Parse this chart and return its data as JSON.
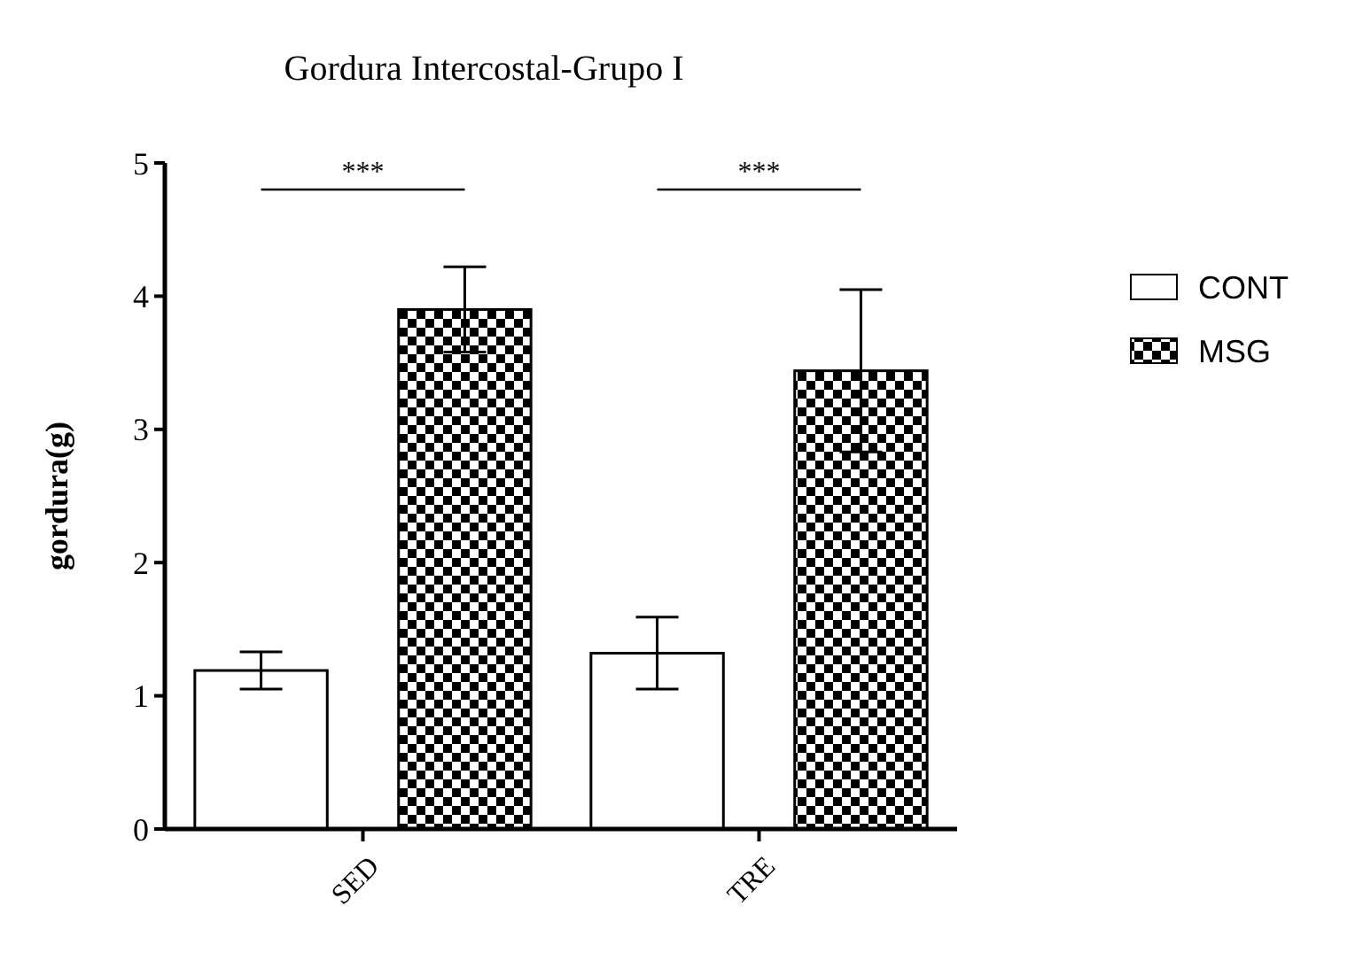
{
  "chart_data": {
    "type": "bar",
    "title": "Gordura Intercostal-Grupo I",
    "ylabel": "gordura(g)",
    "categories": [
      "SED",
      "TRE"
    ],
    "series": [
      {
        "name": "CONT",
        "color": "#ffffff",
        "values": [
          1.19,
          1.32
        ],
        "errors": [
          0.14,
          0.27
        ]
      },
      {
        "name": "MSG",
        "color": "#000000",
        "values": [
          3.9,
          3.44
        ],
        "errors": [
          0.32,
          0.61
        ]
      }
    ],
    "ylim": [
      0,
      5
    ],
    "yticks": [
      0,
      1,
      2,
      3,
      4,
      5
    ],
    "grid": false,
    "legend": "right",
    "annotations": [
      "***",
      "***"
    ]
  }
}
